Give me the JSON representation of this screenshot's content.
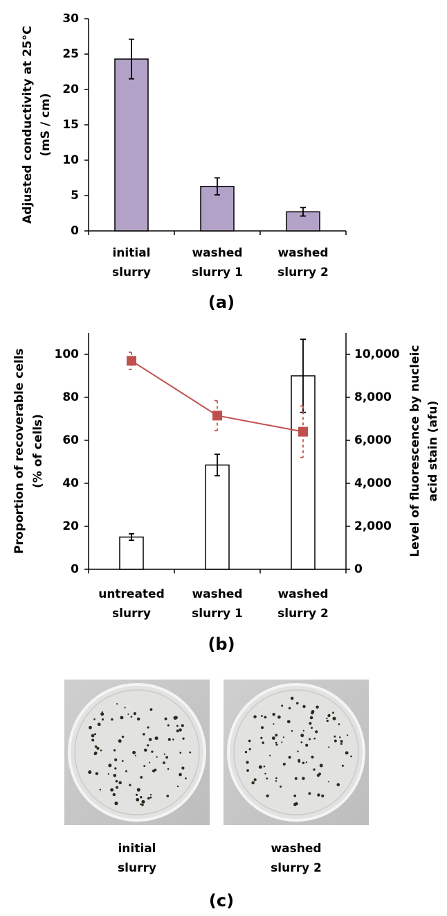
{
  "chart_data": [
    {
      "type": "bar",
      "panel_label": "(a)",
      "ylabel": [
        "Adjusted conductivity at 25°C",
        "(mS / cm)"
      ],
      "categories": [
        "initial slurry",
        "washed slurry 1",
        "washed slurry 2"
      ],
      "series": [
        {
          "color": "#b3a2c7",
          "values": [
            24.3,
            6.3,
            2.7
          ],
          "errors": [
            2.8,
            1.2,
            0.6
          ]
        }
      ],
      "ylim": [
        0,
        30
      ],
      "yticks": [
        0,
        5,
        10,
        15,
        20,
        25,
        30
      ]
    },
    {
      "type": "combo",
      "panel_label": "(b)",
      "ylabel": [
        "Proportion of recoverable cells",
        "(% of cells)"
      ],
      "y2label": [
        "Level of fluorescence by nucleic",
        "acid stain (afu)"
      ],
      "ylabel_color": "#c0504d",
      "categories": [
        "untreated slurry",
        "washed slurry 1",
        "washed slurry 2"
      ],
      "series": [
        {
          "type": "bar",
          "axis": "y2",
          "color": "#ffffff",
          "values": [
            1500,
            4850,
            9000
          ],
          "errors": [
            150,
            500,
            1700
          ]
        },
        {
          "type": "line",
          "color": "#c0504d",
          "values": [
            97,
            71.5,
            64
          ],
          "errors": [
            4,
            7,
            12
          ]
        }
      ],
      "ylim": [
        0,
        110
      ],
      "yticks": [
        0,
        20,
        40,
        60,
        80,
        100
      ],
      "y2lim": [
        0,
        11000
      ],
      "y2ticks": [
        0,
        {
          "value": 2000,
          "label": "2,000"
        },
        {
          "value": 4000,
          "label": "4,000"
        },
        {
          "value": 6000,
          "label": "6,000"
        },
        {
          "value": 8000,
          "label": "8,000"
        },
        {
          "value": 10000,
          "label": "10,000"
        }
      ]
    }
  ],
  "photos": {
    "captions": [
      "initial slurry",
      "washed slurry 2"
    ],
    "panel_label": "(c)"
  }
}
